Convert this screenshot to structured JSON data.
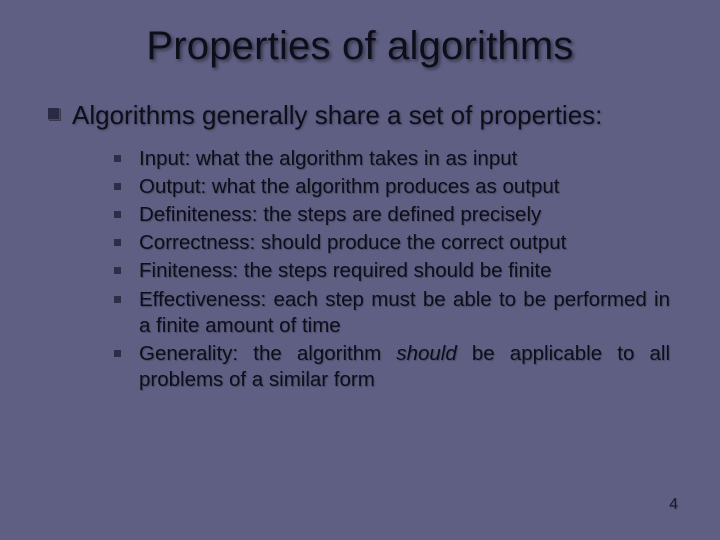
{
  "background_color": "#5e5f83",
  "text_color": "#0e0e1a",
  "title_fontsize": 40,
  "level1_fontsize": 26,
  "level2_fontsize": 20.5,
  "bullet1_color": "#2a2a45",
  "bullet2_color": "#2d2d48",
  "slide": {
    "title": "Properties of algorithms",
    "point": "Algorithms generally share a set of properties:",
    "items": [
      {
        "text": "Input: what the algorithm takes in as input"
      },
      {
        "text": "Output: what the algorithm produces as output"
      },
      {
        "text": "Definiteness: the steps are defined precisely"
      },
      {
        "text": "Correctness: should produce the correct output"
      },
      {
        "text": "Finiteness: the steps required should be finite"
      },
      {
        "text": "Effectiveness: each step must be able to be performed in a finite amount of time"
      },
      {
        "prefix": "Generality: the algorithm ",
        "italic": "should",
        "suffix": " be applicable to all problems of a similar form"
      }
    ],
    "page_number": "4"
  }
}
